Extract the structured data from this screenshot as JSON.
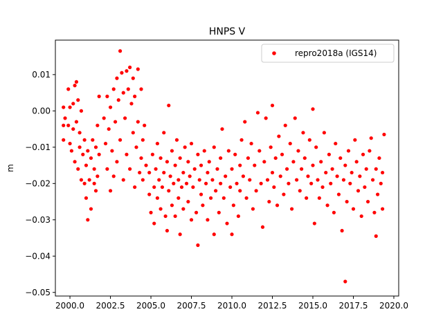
{
  "chart_data": {
    "type": "scatter",
    "title": "HNPS V",
    "xlabel": "",
    "ylabel": "m",
    "xlim": [
      1999.1,
      2020.3
    ],
    "ylim": [
      -0.051,
      0.0195
    ],
    "x_ticks": [
      2000.0,
      2002.5,
      2005.0,
      2007.5,
      2010.0,
      2012.5,
      2015.0,
      2017.5,
      2020.0
    ],
    "x_tick_labels": [
      "2000.0",
      "2002.5",
      "2005.0",
      "2007.5",
      "2010.0",
      "2012.5",
      "2015.0",
      "2017.5",
      "2020.0"
    ],
    "y_ticks": [
      0.01,
      0.0,
      -0.01,
      -0.02,
      -0.03,
      -0.04,
      -0.05
    ],
    "y_tick_labels": [
      "0.01",
      "0.00",
      "−0.01",
      "−0.02",
      "−0.03",
      "−0.04",
      "−0.05"
    ],
    "grid": false,
    "legend_position": "top-right",
    "series": [
      {
        "name": "repro2018a (IGS14)",
        "color": "#ff0000",
        "marker": "circle",
        "points": [
          [
            1999.6,
            0.001
          ],
          [
            1999.6,
            -0.004
          ],
          [
            1999.6,
            -0.008
          ],
          [
            1999.7,
            -0.002
          ],
          [
            1999.9,
            0.006
          ],
          [
            1999.9,
            -0.004
          ],
          [
            2000.0,
            0.001
          ],
          [
            2000.0,
            -0.009
          ],
          [
            2000.1,
            -0.011
          ],
          [
            2000.2,
            0.002
          ],
          [
            2000.2,
            -0.005
          ],
          [
            2000.3,
            0.007
          ],
          [
            2000.3,
            -0.014
          ],
          [
            2000.4,
            0.008
          ],
          [
            2000.4,
            -0.003
          ],
          [
            2000.5,
            -0.016
          ],
          [
            2000.5,
            0.003
          ],
          [
            2000.6,
            -0.01
          ],
          [
            2000.6,
            -0.006
          ],
          [
            2000.7,
            -0.019
          ],
          [
            2000.7,
            0.0
          ],
          [
            2000.8,
            -0.012
          ],
          [
            2000.9,
            -0.008
          ],
          [
            2000.9,
            -0.02
          ],
          [
            2001.0,
            -0.015
          ],
          [
            2001.0,
            -0.024
          ],
          [
            2001.1,
            -0.03
          ],
          [
            2001.1,
            -0.011
          ],
          [
            2001.2,
            -0.019
          ],
          [
            2001.3,
            -0.013
          ],
          [
            2001.3,
            -0.027
          ],
          [
            2001.4,
            -0.008
          ],
          [
            2001.5,
            -0.02
          ],
          [
            2001.5,
            -0.016
          ],
          [
            2001.6,
            -0.022
          ],
          [
            2001.6,
            -0.01
          ],
          [
            2001.7,
            -0.004
          ],
          [
            2001.7,
            -0.018
          ],
          [
            2001.8,
            0.004
          ],
          [
            2001.8,
            -0.012
          ],
          [
            2002.1,
            -0.002
          ],
          [
            2002.2,
            -0.009
          ],
          [
            2002.3,
            0.004
          ],
          [
            2002.3,
            -0.016
          ],
          [
            2002.4,
            -0.005
          ],
          [
            2002.5,
            -0.022
          ],
          [
            2002.5,
            0.001
          ],
          [
            2002.6,
            -0.011
          ],
          [
            2002.7,
            0.006
          ],
          [
            2002.7,
            -0.018
          ],
          [
            2002.8,
            -0.003
          ],
          [
            2002.9,
            0.009
          ],
          [
            2002.9,
            -0.014
          ],
          [
            2003.0,
            0.003
          ],
          [
            2003.1,
            -0.008
          ],
          [
            2003.1,
            0.0165
          ],
          [
            2003.2,
            0.0105
          ],
          [
            2003.3,
            -0.019
          ],
          [
            2003.3,
            0.005
          ],
          [
            2003.4,
            -0.002
          ],
          [
            2003.5,
            0.011
          ],
          [
            2003.5,
            -0.012
          ],
          [
            2003.6,
            0.006
          ],
          [
            2003.7,
            0.012
          ],
          [
            2003.7,
            -0.016
          ],
          [
            2003.8,
            0.002
          ],
          [
            2003.9,
            -0.006
          ],
          [
            2003.9,
            0.009
          ],
          [
            2004.0,
            -0.021
          ],
          [
            2004.0,
            0.004
          ],
          [
            2004.1,
            -0.01
          ],
          [
            2004.2,
            0.0115
          ],
          [
            2004.2,
            -0.003
          ],
          [
            2004.3,
            -0.017
          ],
          [
            2004.4,
            0.006
          ],
          [
            2004.4,
            -0.013
          ],
          [
            2004.5,
            -0.008
          ],
          [
            2004.5,
            -0.019
          ],
          [
            2004.6,
            -0.004
          ],
          [
            2004.7,
            -0.015
          ],
          [
            2004.9,
            -0.023
          ],
          [
            2004.9,
            -0.017
          ],
          [
            2005.0,
            -0.028
          ],
          [
            2005.1,
            -0.012
          ],
          [
            2005.2,
            -0.021
          ],
          [
            2005.2,
            -0.031
          ],
          [
            2005.3,
            -0.016
          ],
          [
            2005.4,
            -0.009
          ],
          [
            2005.4,
            -0.024
          ],
          [
            2005.5,
            -0.019
          ],
          [
            2005.6,
            -0.027
          ],
          [
            2005.6,
            -0.013
          ],
          [
            2005.7,
            -0.021
          ],
          [
            2005.8,
            -0.006
          ],
          [
            2005.8,
            -0.017
          ],
          [
            2005.9,
            -0.029
          ],
          [
            2006.0,
            -0.033
          ],
          [
            2006.0,
            -0.014
          ],
          [
            2006.1,
            0.0015
          ],
          [
            2006.1,
            -0.022
          ],
          [
            2006.2,
            -0.018
          ],
          [
            2006.3,
            -0.026
          ],
          [
            2006.3,
            -0.011
          ],
          [
            2006.4,
            -0.02
          ],
          [
            2006.5,
            -0.015
          ],
          [
            2006.5,
            -0.029
          ],
          [
            2006.6,
            -0.008
          ],
          [
            2006.7,
            -0.019
          ],
          [
            2006.7,
            -0.024
          ],
          [
            2006.8,
            -0.034
          ],
          [
            2006.8,
            -0.013
          ],
          [
            2006.9,
            -0.021
          ],
          [
            2007.0,
            -0.017
          ],
          [
            2007.0,
            -0.027
          ],
          [
            2007.1,
            -0.01
          ],
          [
            2007.2,
            -0.02
          ],
          [
            2007.3,
            -0.014
          ],
          [
            2007.3,
            -0.025
          ],
          [
            2007.4,
            -0.018
          ],
          [
            2007.5,
            -0.03
          ],
          [
            2007.5,
            -0.009
          ],
          [
            2007.6,
            -0.021
          ],
          [
            2007.7,
            -0.016
          ],
          [
            2007.8,
            -0.028
          ],
          [
            2007.9,
            -0.037
          ],
          [
            2007.9,
            -0.012
          ],
          [
            2008.0,
            -0.019
          ],
          [
            2008.1,
            -0.023
          ],
          [
            2008.1,
            -0.015
          ],
          [
            2008.2,
            -0.026
          ],
          [
            2008.3,
            -0.011
          ],
          [
            2008.4,
            -0.02
          ],
          [
            2008.5,
            -0.017
          ],
          [
            2008.5,
            -0.03
          ],
          [
            2008.6,
            -0.014
          ],
          [
            2008.7,
            -0.024
          ],
          [
            2008.8,
            -0.019
          ],
          [
            2008.9,
            -0.034
          ],
          [
            2008.9,
            -0.01
          ],
          [
            2009.0,
            -0.022
          ],
          [
            2009.1,
            -0.016
          ],
          [
            2009.2,
            -0.028
          ],
          [
            2009.3,
            -0.013
          ],
          [
            2009.3,
            -0.02
          ],
          [
            2009.4,
            -0.005
          ],
          [
            2009.5,
            -0.024
          ],
          [
            2009.6,
            -0.018
          ],
          [
            2009.7,
            -0.031
          ],
          [
            2009.8,
            -0.011
          ],
          [
            2009.9,
            -0.021
          ],
          [
            2010.0,
            -0.034
          ],
          [
            2010.0,
            -0.016
          ],
          [
            2010.1,
            -0.026
          ],
          [
            2010.2,
            -0.012
          ],
          [
            2010.3,
            -0.02
          ],
          [
            2010.4,
            -0.029
          ],
          [
            2010.5,
            -0.015
          ],
          [
            2010.5,
            -0.022
          ],
          [
            2010.6,
            -0.008
          ],
          [
            2010.7,
            -0.018
          ],
          [
            2010.8,
            -0.003
          ],
          [
            2010.9,
            -0.024
          ],
          [
            2011.0,
            -0.013
          ],
          [
            2011.1,
            -0.019
          ],
          [
            2011.2,
            -0.009
          ],
          [
            2011.3,
            -0.027
          ],
          [
            2011.4,
            -0.015
          ],
          [
            2011.5,
            -0.022
          ],
          [
            2011.6,
            -0.0005
          ],
          [
            2011.7,
            -0.011
          ],
          [
            2011.8,
            -0.02
          ],
          [
            2011.9,
            -0.032
          ],
          [
            2012.0,
            -0.014
          ],
          [
            2012.1,
            -0.002
          ],
          [
            2012.2,
            -0.019
          ],
          [
            2012.3,
            -0.025
          ],
          [
            2012.4,
            -0.01
          ],
          [
            2012.5,
            0.0015
          ],
          [
            2012.5,
            -0.017
          ],
          [
            2012.6,
            -0.021
          ],
          [
            2012.7,
            -0.013
          ],
          [
            2012.8,
            -0.026
          ],
          [
            2012.9,
            -0.007
          ],
          [
            2013.0,
            -0.018
          ],
          [
            2013.1,
            -0.012
          ],
          [
            2013.2,
            -0.023
          ],
          [
            2013.3,
            -0.004
          ],
          [
            2013.4,
            -0.016
          ],
          [
            2013.5,
            -0.02
          ],
          [
            2013.6,
            -0.009
          ],
          [
            2013.7,
            -0.027
          ],
          [
            2013.8,
            -0.014
          ],
          [
            2013.9,
            -0.002
          ],
          [
            2014.0,
            -0.019
          ],
          [
            2014.1,
            -0.011
          ],
          [
            2014.2,
            -0.022
          ],
          [
            2014.3,
            -0.016
          ],
          [
            2014.4,
            -0.006
          ],
          [
            2014.5,
            -0.013
          ],
          [
            2014.6,
            -0.024
          ],
          [
            2014.7,
            -0.018
          ],
          [
            2014.8,
            -0.008
          ],
          [
            2014.9,
            -0.02
          ],
          [
            2015.0,
            0.0005
          ],
          [
            2015.0,
            -0.015
          ],
          [
            2015.1,
            -0.031
          ],
          [
            2015.2,
            -0.01
          ],
          [
            2015.3,
            -0.019
          ],
          [
            2015.4,
            -0.024
          ],
          [
            2015.5,
            -0.014
          ],
          [
            2015.6,
            -0.021
          ],
          [
            2015.7,
            -0.006
          ],
          [
            2015.8,
            -0.017
          ],
          [
            2015.9,
            -0.026
          ],
          [
            2016.0,
            -0.012
          ],
          [
            2016.1,
            -0.02
          ],
          [
            2016.2,
            -0.016
          ],
          [
            2016.3,
            -0.028
          ],
          [
            2016.4,
            -0.009
          ],
          [
            2016.5,
            -0.018
          ],
          [
            2016.6,
            -0.023
          ],
          [
            2016.7,
            -0.013
          ],
          [
            2016.8,
            -0.033
          ],
          [
            2016.9,
            -0.019
          ],
          [
            2017.0,
            -0.047
          ],
          [
            2017.0,
            -0.015
          ],
          [
            2017.1,
            -0.025
          ],
          [
            2017.2,
            -0.011
          ],
          [
            2017.3,
            -0.02
          ],
          [
            2017.4,
            -0.017
          ],
          [
            2017.5,
            -0.027
          ],
          [
            2017.6,
            -0.008
          ],
          [
            2017.7,
            -0.014
          ],
          [
            2017.8,
            -0.022
          ],
          [
            2017.9,
            -0.018
          ],
          [
            2018.0,
            -0.029
          ],
          [
            2018.1,
            -0.012
          ],
          [
            2018.2,
            -0.021
          ],
          [
            2018.3,
            -0.016
          ],
          [
            2018.4,
            -0.025
          ],
          [
            2018.5,
            -0.011
          ],
          [
            2018.6,
            -0.0075
          ],
          [
            2018.7,
            -0.019
          ],
          [
            2018.8,
            -0.028
          ],
          [
            2018.9,
            -0.0345
          ],
          [
            2018.9,
            -0.016
          ],
          [
            2019.0,
            -0.023
          ],
          [
            2019.1,
            -0.013
          ],
          [
            2019.2,
            -0.02
          ],
          [
            2019.3,
            -0.027
          ],
          [
            2019.3,
            -0.017
          ],
          [
            2019.4,
            -0.0065
          ]
        ]
      }
    ]
  }
}
